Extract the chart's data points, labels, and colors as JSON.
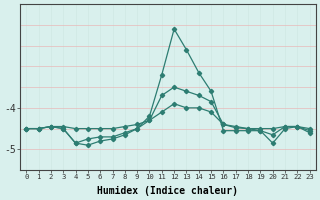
{
  "xlabel": "Humidex (Indice chaleur)",
  "x": [
    0,
    1,
    2,
    3,
    4,
    5,
    6,
    7,
    8,
    9,
    10,
    11,
    12,
    13,
    14,
    15,
    16,
    17,
    18,
    19,
    20,
    21,
    22,
    23
  ],
  "line1": [
    -4.5,
    -4.5,
    -4.45,
    -4.45,
    -4.5,
    -4.5,
    -4.5,
    -4.5,
    -4.45,
    -4.4,
    -4.3,
    -4.1,
    -3.9,
    -4.0,
    -4.0,
    -4.1,
    -4.4,
    -4.45,
    -4.5,
    -4.5,
    -4.5,
    -4.45,
    -4.45,
    -4.5
  ],
  "line2": [
    -4.5,
    -4.5,
    -4.45,
    -4.5,
    -4.85,
    -4.9,
    -4.8,
    -4.75,
    -4.65,
    -4.5,
    -4.3,
    -3.7,
    -3.5,
    -3.6,
    -3.7,
    -3.85,
    -4.4,
    -4.48,
    -4.5,
    -4.55,
    -4.65,
    -4.45,
    -4.45,
    -4.55
  ],
  "line3": [
    -4.5,
    -4.5,
    -4.45,
    -4.5,
    -4.85,
    -4.75,
    -4.7,
    -4.7,
    -4.6,
    -4.5,
    -4.2,
    -3.2,
    -2.1,
    -2.6,
    -3.15,
    -3.6,
    -4.55,
    -4.55,
    -4.55,
    -4.55,
    -4.85,
    -4.5,
    -4.45,
    -4.6
  ],
  "bg_color": "#d9f0ed",
  "line_color": "#2d7d72",
  "grid_color_v": "#d0e8e4",
  "grid_color_h": "#e8b8b8",
  "ylim": [
    -5.5,
    -1.5
  ],
  "yticks": [
    -5,
    -4
  ],
  "xlim": [
    -0.5,
    23.5
  ]
}
